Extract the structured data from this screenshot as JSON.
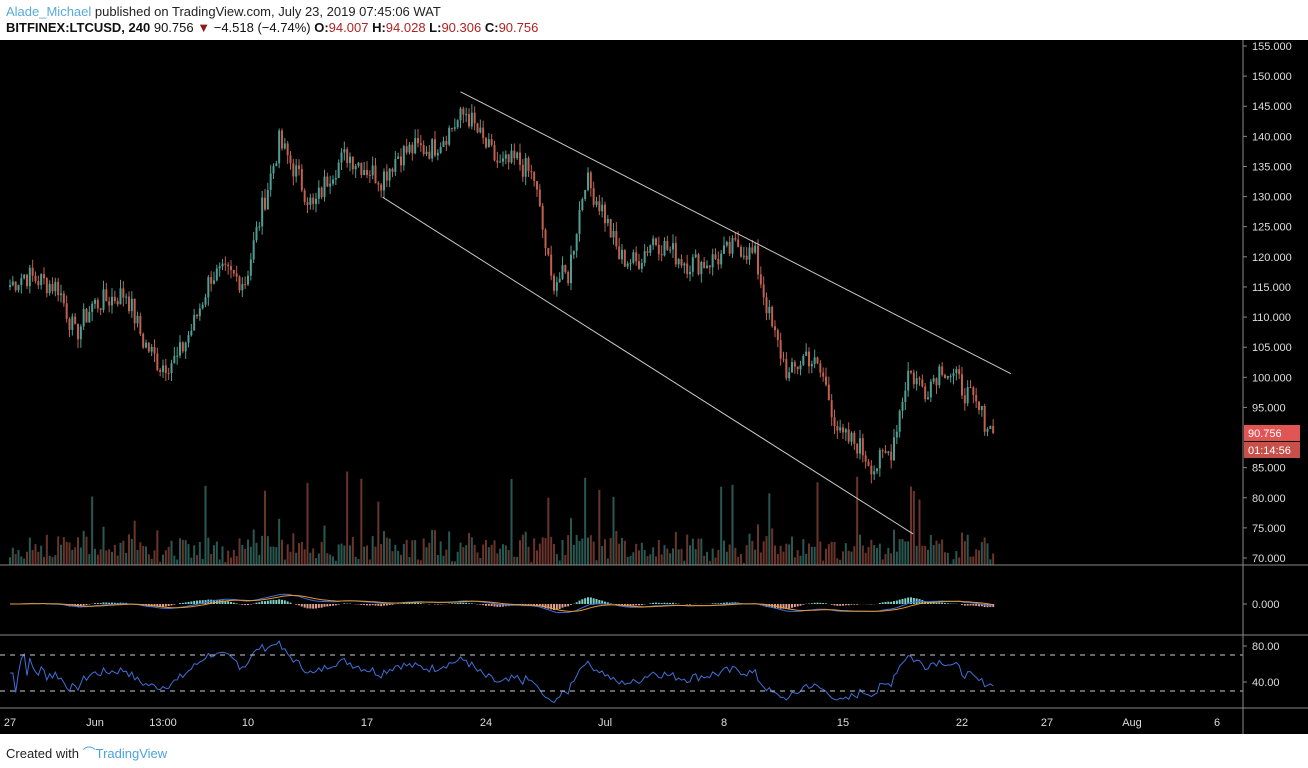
{
  "header": {
    "user": "Alade_Michael",
    "published": "published on TradingView.com, July 23, 2019 07:45:06 WAT",
    "symbol": "BITFINEX:LTCUSD, 240",
    "last": "90.756",
    "change": "−4.518 (−4.74%)",
    "o_label": "O:",
    "o": "94.007",
    "h_label": "H:",
    "h": "94.028",
    "l_label": "L:",
    "l": "90.306",
    "c_label": "C:",
    "c": "90.756"
  },
  "footer": {
    "created": "Created with",
    "brand": "TradingView"
  },
  "colors": {
    "up": "#4f9e93",
    "down": "#c0604f",
    "background": "#000000",
    "trendline": "#c8c8c8",
    "macd": "#3f6fd8",
    "signal": "#e69a2e",
    "rsi": "#3f6fd8",
    "last_price": "#e25555"
  },
  "chart_data": {
    "type": "candlestick",
    "interval": "240",
    "start_date": "2019-05-27",
    "daily_close": [
      115,
      117,
      116,
      115,
      107,
      112,
      113,
      114,
      106,
      102,
      103,
      109,
      117,
      117,
      116,
      128,
      139,
      134,
      128,
      134,
      137,
      135,
      133,
      137,
      138,
      138,
      141,
      144,
      139,
      135,
      136,
      133,
      116,
      117,
      133,
      128,
      120,
      119,
      123,
      121,
      119,
      119,
      120,
      122,
      120,
      108,
      100,
      104,
      100,
      90,
      89,
      85,
      88,
      101,
      98,
      102,
      99,
      95,
      90.756
    ],
    "price_axis": {
      "range": [
        70,
        155
      ],
      "ticks": [
        "155.000",
        "150.000",
        "145.000",
        "140.000",
        "135.000",
        "130.000",
        "125.000",
        "120.000",
        "115.000",
        "110.000",
        "105.000",
        "100.000",
        "95.000",
        "90.000",
        "85.000",
        "80.000",
        "75.000",
        "70.000"
      ]
    },
    "last_price_label": "90.756",
    "countdown_label": "01:14:56",
    "x_ticks": [
      {
        "label": "27",
        "date": "2019-05-27"
      },
      {
        "label": "Jun",
        "date": "2019-06-01"
      },
      {
        "label": "13:00",
        "date": "2019-06-05"
      },
      {
        "label": "10",
        "date": "2019-06-10"
      },
      {
        "label": "17",
        "date": "2019-06-17"
      },
      {
        "label": "24",
        "date": "2019-06-24"
      },
      {
        "label": "Jul",
        "date": "2019-07-01"
      },
      {
        "label": "8",
        "date": "2019-07-08"
      },
      {
        "label": "15",
        "date": "2019-07-15"
      },
      {
        "label": "22",
        "date": "2019-07-22"
      },
      {
        "label": "27",
        "date": "2019-07-27"
      },
      {
        "label": "Aug",
        "date": "2019-08-01"
      },
      {
        "label": "6",
        "date": "2019-08-06"
      }
    ],
    "trendlines": [
      {
        "from": [
          "2019-06-22T12:00",
          147.4
        ],
        "to": [
          "2019-07-24T21:00",
          100.6
        ]
      },
      {
        "from": [
          "2019-06-17T22:00",
          129.9
        ],
        "to": [
          "2019-07-19T03:00",
          74.0
        ]
      }
    ],
    "macd": {
      "tick": "0.000"
    },
    "rsi": {
      "ticks": [
        "80.00",
        "40.00"
      ],
      "bands": [
        70,
        30
      ]
    }
  }
}
